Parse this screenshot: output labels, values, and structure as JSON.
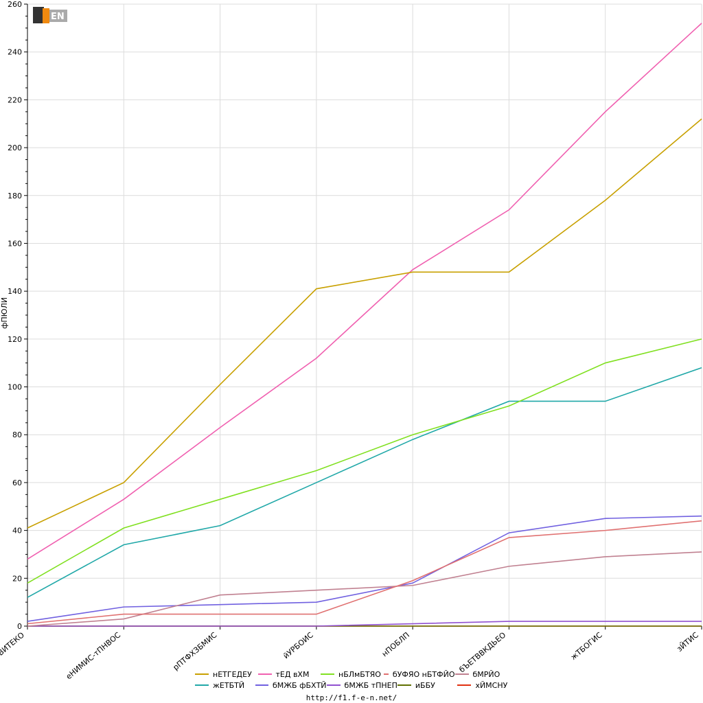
{
  "footer_url": "http://f1.f-e-n.net/",
  "logo_text": "F1EN",
  "chart_data": {
    "type": "line",
    "title": "",
    "xlabel": "",
    "ylabel": "фПЮЛИ",
    "ylim": [
      0,
      260
    ],
    "yticks": [
      0,
      20,
      40,
      60,
      80,
      100,
      120,
      140,
      160,
      180,
      200,
      220,
      240,
      260
    ],
    "grid": true,
    "legend_position": "bottom",
    "categories": [
      "вВИТЕКО",
      "еНИМИС-тПНВОС",
      "рПТФХЗБМИС",
      "йУРБОИС",
      "нПОБЛП",
      "бЪЕТВВКДЬЕО",
      "жТБОГИС",
      "зЙТИС"
    ],
    "series": [
      {
        "name": "нЕТГЕДЕУ",
        "color": "#c8a000",
        "values": [
          41,
          60,
          101,
          141,
          148,
          148,
          178,
          212
        ]
      },
      {
        "name": "тЕД вХМ",
        "color": "#f060b0",
        "values": [
          28,
          53,
          83,
          112,
          149,
          174,
          215,
          252
        ]
      },
      {
        "name": "нБЛмБТЯО",
        "color": "#80e020",
        "values": [
          18,
          41,
          53,
          65,
          80,
          92,
          110,
          120
        ]
      },
      {
        "name": "бУФЯО нБТФЙО",
        "color": "#e07070",
        "values": [
          1,
          5,
          5,
          5,
          19,
          37,
          40,
          44
        ]
      },
      {
        "name": "бМРЙО",
        "color": "#c08090",
        "values": [
          0,
          3,
          13,
          15,
          17,
          25,
          29,
          31
        ]
      },
      {
        "name": "жЕТБТЙ",
        "color": "#20a8a8",
        "values": [
          12,
          34,
          42,
          60,
          78,
          94,
          94,
          108
        ]
      },
      {
        "name": "бМЖБ фБХТЙ",
        "color": "#7060e0",
        "values": [
          2,
          8,
          9,
          10,
          18,
          39,
          45,
          46
        ]
      },
      {
        "name": "бМЖБ тПНЕП",
        "color": "#9050d0",
        "values": [
          0,
          0,
          0,
          0,
          1,
          2,
          2,
          2
        ]
      },
      {
        "name": "иББУ",
        "color": "#607000",
        "values": [
          0,
          0,
          0,
          0,
          0,
          0,
          0,
          0
        ]
      },
      {
        "name": "хЙМСНУ",
        "color": "#e03010",
        "values": [
          0,
          0,
          0,
          0,
          0,
          0,
          0,
          0
        ]
      }
    ]
  }
}
